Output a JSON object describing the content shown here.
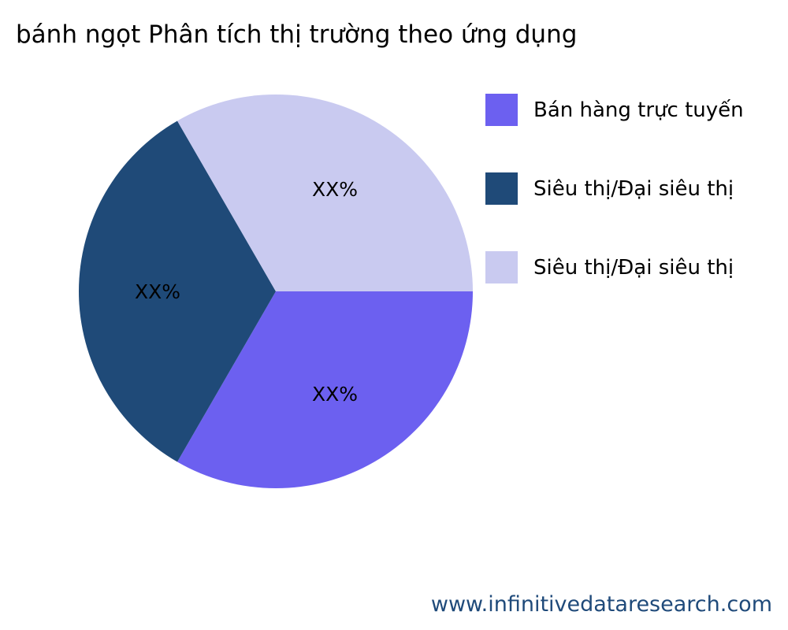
{
  "chart_data": {
    "type": "pie",
    "title": "bánh ngọt Phân tích thị trường theo ứng dụng",
    "slices": [
      {
        "label": "Bán hàng trực tuyến",
        "value": 1,
        "data_label": "XX%",
        "color": "#6c60f0"
      },
      {
        "label": "Siêu thị/Đại siêu thị",
        "value": 1,
        "data_label": "XX%",
        "color": "#1f4a78"
      },
      {
        "label": "Siêu thị/Đại siêu thị",
        "value": 1,
        "data_label": "XX%",
        "color": "#c9caf0"
      }
    ],
    "legend_position": "right"
  },
  "footer": "www.infinitivedataresearch.com"
}
